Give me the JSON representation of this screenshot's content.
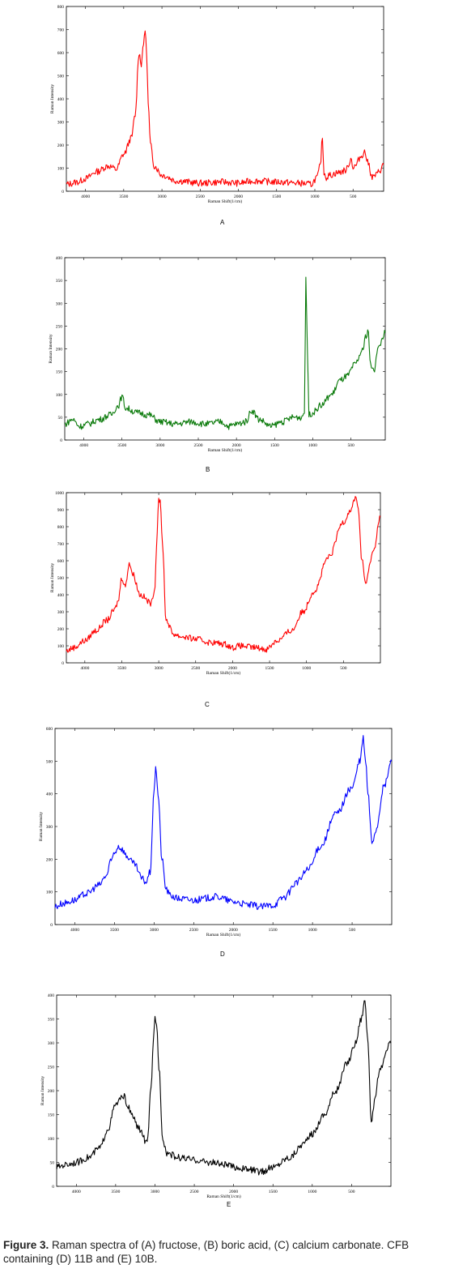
{
  "caption": {
    "label": "Figure 3.",
    "text": " Raman spectra of (A) fructose, (B) boric acid, (C) calcium carbonate. CFB containing (D) 11B and (E) 10B."
  },
  "chart_data": [
    {
      "panel": "A",
      "type": "line",
      "color": "#ff0000",
      "xlabel": "Raman Shift(1/cm)",
      "ylabel": "Raman Intensity",
      "xlim": [
        4250,
        100
      ],
      "ylim": [
        0,
        800
      ],
      "xticks": [
        4000,
        3500,
        3000,
        2500,
        2000,
        1500,
        1000,
        500
      ],
      "yticks": [
        0,
        100,
        200,
        300,
        400,
        500,
        600,
        700,
        800
      ],
      "x": [
        4250,
        4100,
        4000,
        3850,
        3700,
        3600,
        3500,
        3400,
        3350,
        3300,
        3270,
        3250,
        3220,
        3200,
        3180,
        3150,
        3100,
        3000,
        2800,
        2500,
        2200,
        2000,
        1800,
        1500,
        1200,
        1050,
        970,
        930,
        900,
        880,
        850,
        800,
        700,
        600,
        520,
        500,
        470,
        400,
        350,
        300,
        250,
        200,
        150,
        100
      ],
      "values": [
        30,
        40,
        55,
        85,
        110,
        95,
        160,
        230,
        330,
        600,
        550,
        610,
        700,
        600,
        380,
        200,
        110,
        70,
        45,
        35,
        40,
        35,
        45,
        40,
        35,
        30,
        60,
        110,
        230,
        80,
        60,
        70,
        80,
        90,
        140,
        100,
        110,
        150,
        170,
        120,
        60,
        70,
        90,
        115
      ]
    },
    {
      "panel": "B",
      "type": "line",
      "color": "#0a7a0a",
      "xlabel": "Raman Shift(1/cm)",
      "ylabel": "Raman Intensity",
      "xlim": [
        4250,
        50
      ],
      "ylim": [
        0,
        400
      ],
      "xticks": [
        4000,
        3500,
        3000,
        2500,
        2000,
        1500,
        1000,
        500
      ],
      "yticks": [
        0,
        50,
        100,
        150,
        200,
        250,
        300,
        350,
        400
      ],
      "x": [
        4250,
        4150,
        4050,
        3950,
        3800,
        3650,
        3550,
        3500,
        3450,
        3300,
        3150,
        3000,
        2800,
        2600,
        2400,
        2200,
        2100,
        2000,
        1880,
        1800,
        1700,
        1550,
        1400,
        1250,
        1150,
        1110,
        1090,
        1070,
        1050,
        1000,
        900,
        750,
        650,
        550,
        450,
        350,
        300,
        270,
        250,
        200,
        150,
        50
      ],
      "values": [
        35,
        45,
        30,
        35,
        45,
        55,
        75,
        95,
        70,
        60,
        55,
        40,
        35,
        40,
        35,
        40,
        30,
        35,
        40,
        65,
        45,
        30,
        40,
        50,
        50,
        60,
        350,
        200,
        55,
        60,
        75,
        100,
        130,
        140,
        165,
        195,
        230,
        240,
        170,
        150,
        200,
        235
      ]
    },
    {
      "panel": "C",
      "type": "line",
      "color": "#ff0000",
      "xlabel": "Raman Shift(1/cm)",
      "ylabel": "Raman Intensity",
      "xlim": [
        4250,
        0
      ],
      "ylim": [
        0,
        1000
      ],
      "xticks": [
        4000,
        3500,
        3000,
        2500,
        2000,
        1500,
        1000,
        500
      ],
      "yticks": [
        0,
        100,
        200,
        300,
        400,
        500,
        600,
        700,
        800,
        900,
        1000
      ],
      "x": [
        4250,
        4150,
        4000,
        3850,
        3700,
        3600,
        3550,
        3500,
        3450,
        3400,
        3350,
        3250,
        3100,
        3050,
        3030,
        3000,
        2980,
        2950,
        2900,
        2800,
        2700,
        2500,
        2300,
        2100,
        2000,
        1900,
        1700,
        1550,
        1400,
        1200,
        1050,
        900,
        700,
        500,
        400,
        330,
        300,
        250,
        200,
        100,
        0
      ],
      "values": [
        70,
        90,
        130,
        190,
        250,
        310,
        360,
        500,
        450,
        590,
        520,
        400,
        350,
        450,
        700,
        970,
        940,
        700,
        250,
        170,
        155,
        140,
        120,
        110,
        90,
        100,
        90,
        80,
        130,
        190,
        300,
        420,
        620,
        830,
        900,
        980,
        900,
        600,
        470,
        650,
        860
      ]
    },
    {
      "panel": "D",
      "type": "line",
      "color": "#0000ff",
      "xlabel": "Raman Shift(1/cm)",
      "ylabel": "Raman Intensity",
      "xlim": [
        4250,
        0
      ],
      "ylim": [
        0,
        600
      ],
      "xticks": [
        4000,
        3500,
        3000,
        2500,
        2000,
        1500,
        1000,
        500
      ],
      "yticks": [
        0,
        100,
        200,
        300,
        400,
        500,
        600
      ],
      "x": [
        4250,
        4150,
        4000,
        3850,
        3700,
        3600,
        3550,
        3500,
        3450,
        3400,
        3350,
        3250,
        3150,
        3100,
        3050,
        3000,
        2980,
        2950,
        2900,
        2850,
        2800,
        2700,
        2500,
        2200,
        2000,
        1800,
        1650,
        1500,
        1350,
        1200,
        1050,
        900,
        700,
        500,
        400,
        360,
        330,
        300,
        250,
        200,
        100,
        0
      ],
      "values": [
        55,
        65,
        75,
        95,
        120,
        150,
        190,
        220,
        240,
        230,
        210,
        185,
        140,
        130,
        160,
        400,
        490,
        400,
        200,
        110,
        90,
        80,
        75,
        85,
        70,
        60,
        55,
        60,
        85,
        130,
        170,
        240,
        340,
        420,
        500,
        570,
        500,
        400,
        250,
        290,
        420,
        500
      ]
    },
    {
      "panel": "E",
      "type": "line",
      "color": "#000000",
      "xlabel": "Raman Shift(1/cm)",
      "ylabel": "Raman Intensity",
      "xlim": [
        4250,
        0
      ],
      "ylim": [
        0,
        400
      ],
      "xticks": [
        4000,
        3500,
        3000,
        2500,
        2000,
        1500,
        1000,
        500
      ],
      "yticks": [
        0,
        50,
        100,
        150,
        200,
        250,
        300,
        350,
        400
      ],
      "x": [
        4250,
        4150,
        4000,
        3850,
        3700,
        3600,
        3500,
        3450,
        3400,
        3350,
        3300,
        3200,
        3100,
        3050,
        3020,
        3000,
        2980,
        2950,
        2900,
        2850,
        2700,
        2500,
        2300,
        2100,
        2000,
        1800,
        1650,
        1500,
        1300,
        1100,
        1000,
        850,
        700,
        550,
        450,
        380,
        330,
        300,
        250,
        200,
        150,
        0
      ],
      "values": [
        40,
        45,
        50,
        60,
        80,
        120,
        170,
        180,
        190,
        170,
        150,
        120,
        90,
        200,
        300,
        355,
        340,
        250,
        100,
        70,
        60,
        55,
        50,
        45,
        40,
        35,
        30,
        40,
        60,
        90,
        110,
        150,
        200,
        260,
        300,
        350,
        390,
        320,
        140,
        180,
        240,
        300
      ]
    }
  ]
}
